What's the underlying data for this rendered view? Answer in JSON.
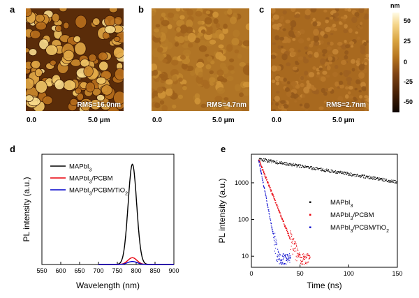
{
  "panels": {
    "a": {
      "letter": "a",
      "rms": "RMS=16.0nm",
      "scale_start": "0.0",
      "scale_end": "5.0 μm"
    },
    "b": {
      "letter": "b",
      "rms": "RMS=4.7nm",
      "scale_start": "0.0",
      "scale_end": "5.0 μm"
    },
    "c": {
      "letter": "c",
      "rms": "RMS=2.7nm",
      "scale_start": "0.0",
      "scale_end": "5.0 μm"
    }
  },
  "colorbar": {
    "unit": "nm",
    "ticks": [
      "50",
      "25",
      "0",
      "-25",
      "-50"
    ],
    "colors": {
      "top": "#fffbe6",
      "mid": "#b5731e",
      "bottom": "#0d0400"
    }
  },
  "chart_data": [
    {
      "panel": "d",
      "type": "line",
      "xlabel": "Wavelength (nm)",
      "ylabel": "PL intensity (a.u.)",
      "xlim": [
        550,
        900
      ],
      "xticks": [
        "550",
        "600",
        "650",
        "700",
        "750",
        "800",
        "850",
        "900"
      ],
      "ylim": [
        0,
        1.1
      ],
      "legend_position": "top-left",
      "series": [
        {
          "name": "MAPbI",
          "sub": "3",
          "suffix": "",
          "color": "#000000",
          "peak_x": 790,
          "peak_y": 1.0,
          "width": 16
        },
        {
          "name": "MAPbI",
          "sub": "3",
          "suffix": "/PCBM",
          "color": "#e8000b",
          "peak_x": 790,
          "peak_y": 0.068,
          "width": 17
        },
        {
          "name": "MAPbI",
          "sub": "3",
          "suffix": "/PCBM/TiO",
          "sub2": "2",
          "color": "#0000cc",
          "peak_x": 790,
          "peak_y": 0.03,
          "width": 18
        }
      ]
    },
    {
      "panel": "e",
      "type": "scatter",
      "xlabel": "Time (ns)",
      "ylabel": "PL intensity (a.u.)",
      "xlim": [
        0,
        150
      ],
      "xticks": [
        "0",
        "50",
        "100",
        "150"
      ],
      "yscale": "log",
      "ylim": [
        5,
        6000
      ],
      "yticks": [
        "10",
        "100",
        "1000"
      ],
      "legend_position": "center-right",
      "series": [
        {
          "name": "MAPbI",
          "sub": "3",
          "suffix": "",
          "color": "#000000",
          "start_x": 7,
          "amplitude": 4500,
          "tau_ns": 100,
          "tail_end_x": 150
        },
        {
          "name": "MAPbI",
          "sub": "3",
          "suffix": "/PCBM",
          "color": "#e8000b",
          "start_x": 7,
          "amplitude": 4500,
          "tau_ns": 6.5,
          "tail_end_x": 60
        },
        {
          "name": "MAPbI",
          "sub": "3",
          "suffix": "/PCBM/TiO",
          "sub2": "2",
          "color": "#0000cc",
          "start_x": 7,
          "amplitude": 4500,
          "tau_ns": 3.2,
          "tail_end_x": 40
        }
      ]
    }
  ]
}
